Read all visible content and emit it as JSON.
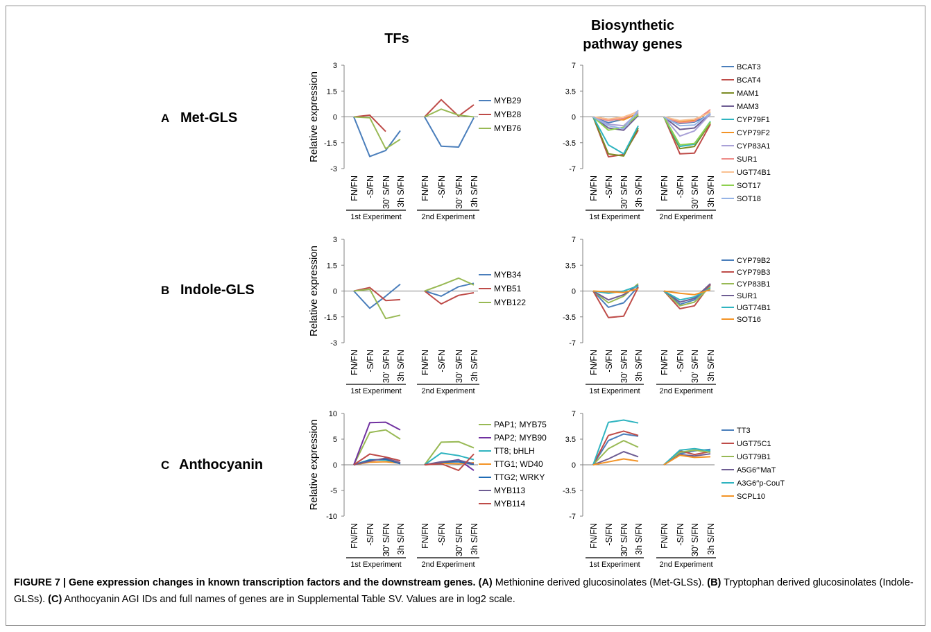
{
  "columns": {
    "tfs": "TFs",
    "biosynthetic": [
      "Biosynthetic",
      "pathway genes"
    ]
  },
  "ylabel": "Relative expression",
  "xlabels": [
    "FN/FN",
    "-S/FN",
    "30’ S/FN",
    "3h S/FN"
  ],
  "experiments": [
    "1st Experiment",
    "2nd Experiment"
  ],
  "rows": [
    {
      "letter": "A",
      "name": "Met-GLS"
    },
    {
      "letter": "B",
      "name": "Indole-GLS"
    },
    {
      "letter": "C",
      "name": "Anthocyanin"
    }
  ],
  "caption": {
    "figure_label": "FIGURE 7 | Gene expression changes in known transcription factors and the downstream genes.",
    "a_tag": "(A)",
    "a_text": "Methionine derived glucosinolates (Met-GLSs).",
    "b_tag": "(B)",
    "b_text": "Tryptophan derived glucosinolates (Indole-GLSs).",
    "c_tag": "(C)",
    "c_text": "Anthocyanin AGI IDs and full names of genes are in Supplemental Table SV. Values are in log2 scale."
  },
  "chart_data": [
    {
      "id": "A-TFs",
      "type": "line",
      "ylim": [
        -3,
        3
      ],
      "yticks": [
        "3",
        "1.5",
        "0",
        "-1.5",
        "-3"
      ],
      "categories": [
        "FN/FN",
        "-S/FN",
        "30’ S/FN",
        "3h S/FN"
      ],
      "series": [
        {
          "name": "MYB29",
          "color": "#4a7ebb",
          "exp1": [
            0,
            -2.3,
            -1.95,
            -0.8
          ],
          "exp2": [
            0,
            -1.7,
            -1.75,
            -0.05
          ]
        },
        {
          "name": "MYB28",
          "color": "#be4b48",
          "exp1": [
            0,
            0.1,
            -0.85,
            null
          ],
          "exp2": [
            0,
            1.0,
            0.05,
            0.7
          ]
        },
        {
          "name": "MYB76",
          "color": "#98b954",
          "exp1": [
            0,
            -0.05,
            -1.85,
            -1.3
          ],
          "exp2": [
            0,
            0.45,
            0.1,
            0.0
          ]
        }
      ]
    },
    {
      "id": "A-Bio",
      "type": "line",
      "ylim": [
        -7,
        7
      ],
      "yticks": [
        "7",
        "3.5",
        "0",
        "-3.5",
        "-7"
      ],
      "categories": [
        "FN/FN",
        "-S/FN",
        "30’ S/FN",
        "3h S/FN"
      ],
      "series": [
        {
          "name": "BCAT3",
          "color": "#4a7ebb",
          "exp1": [
            0,
            -0.8,
            -0.3,
            0.4
          ],
          "exp2": [
            0,
            -0.9,
            -0.7,
            0.3
          ]
        },
        {
          "name": "BCAT4",
          "color": "#be4b48",
          "exp1": [
            0,
            -5.4,
            -5.1,
            -1.8
          ],
          "exp2": [
            0,
            -5.0,
            -4.9,
            -1.0
          ]
        },
        {
          "name": "MAM1",
          "color": "#7b8b23",
          "exp1": [
            0,
            -5.0,
            -5.3,
            -1.5
          ],
          "exp2": [
            0,
            -4.3,
            -4.0,
            -0.8
          ]
        },
        {
          "name": "MAM3",
          "color": "#6e5d93",
          "exp1": [
            0,
            -1.5,
            -1.8,
            0.2
          ],
          "exp2": [
            0,
            -1.7,
            -1.5,
            0.4
          ]
        },
        {
          "name": "CYP79F1",
          "color": "#2fb4c0",
          "exp1": [
            0,
            -3.8,
            -5.0,
            -1.2
          ],
          "exp2": [
            0,
            -4.0,
            -3.7,
            -0.6
          ]
        },
        {
          "name": "CYP79F2",
          "color": "#f39325",
          "exp1": [
            0,
            -0.3,
            -0.4,
            0.5
          ],
          "exp2": [
            0,
            -0.6,
            -0.5,
            0.7
          ]
        },
        {
          "name": "CYP83A1",
          "color": "#a9a1d7",
          "exp1": [
            0,
            -1.0,
            -1.2,
            0.6
          ],
          "exp2": [
            0,
            -2.6,
            -1.9,
            0.4
          ]
        },
        {
          "name": "SUR1",
          "color": "#ee8b87",
          "exp1": [
            0,
            -0.5,
            -0.2,
            0.8
          ],
          "exp2": [
            0,
            -0.8,
            -0.6,
            1.0
          ]
        },
        {
          "name": "UGT74B1",
          "color": "#fac090",
          "exp1": [
            0,
            -0.3,
            0.0,
            0.7
          ],
          "exp2": [
            0,
            -0.5,
            -0.3,
            0.6
          ]
        },
        {
          "name": "SOT17",
          "color": "#8ed04f",
          "exp1": [
            0,
            -1.8,
            -1.4,
            0.3
          ],
          "exp2": [
            0,
            -3.8,
            -3.6,
            -0.7
          ]
        },
        {
          "name": "SOT18",
          "color": "#95b3e6",
          "exp1": [
            0,
            -1.2,
            -1.6,
            0.9
          ],
          "exp2": [
            0,
            -1.2,
            -1.1,
            0.5
          ]
        }
      ]
    },
    {
      "id": "B-TFs",
      "type": "line",
      "ylim": [
        -3,
        3
      ],
      "yticks": [
        "3",
        "1.5",
        "0",
        "-1.5",
        "-3"
      ],
      "categories": [
        "FN/FN",
        "-S/FN",
        "30’ S/FN",
        "3h S/FN"
      ],
      "series": [
        {
          "name": "MYB34",
          "color": "#4a7ebb",
          "exp1": [
            0,
            -1.0,
            -0.3,
            0.4
          ],
          "exp2": [
            0,
            -0.3,
            0.25,
            0.45
          ]
        },
        {
          "name": "MYB51",
          "color": "#be4b48",
          "exp1": [
            0,
            0.2,
            -0.55,
            -0.5
          ],
          "exp2": [
            0,
            -0.75,
            -0.25,
            -0.1
          ]
        },
        {
          "name": "MYB122",
          "color": "#98b954",
          "exp1": [
            0,
            0.1,
            -1.6,
            -1.4
          ],
          "exp2": [
            0,
            0.35,
            0.75,
            0.35
          ]
        }
      ]
    },
    {
      "id": "B-Bio",
      "type": "line",
      "ylim": [
        -7,
        7
      ],
      "yticks": [
        "7",
        "3.5",
        "0",
        "-3.5",
        "-7"
      ],
      "categories": [
        "FN/FN",
        "-S/FN",
        "30’ S/FN",
        "3h S/FN"
      ],
      "series": [
        {
          "name": "CYP79B2",
          "color": "#4a7ebb",
          "exp1": [
            0,
            -2.2,
            -1.6,
            0.6
          ],
          "exp2": [
            0,
            -1.8,
            -1.2,
            0.8
          ]
        },
        {
          "name": "CYP79B3",
          "color": "#be4b48",
          "exp1": [
            0,
            -3.6,
            -3.4,
            0.5
          ],
          "exp2": [
            0,
            -2.4,
            -2.0,
            0.9
          ]
        },
        {
          "name": "CYP83B1",
          "color": "#98b954",
          "exp1": [
            0,
            -1.6,
            -0.7,
            1.0
          ],
          "exp2": [
            0,
            -2.0,
            -1.5,
            0.6
          ]
        },
        {
          "name": "SUR1",
          "color": "#6e5d93",
          "exp1": [
            0,
            -1.2,
            -0.5,
            0.8
          ],
          "exp2": [
            0,
            -1.5,
            -1.0,
            1.0
          ]
        },
        {
          "name": "UGT74B1",
          "color": "#2fb4c0",
          "exp1": [
            0,
            -0.3,
            0.0,
            0.7
          ],
          "exp2": [
            0,
            -1.2,
            -0.8,
            0.4
          ]
        },
        {
          "name": "SOT16",
          "color": "#f39325",
          "exp1": [
            0,
            -0.1,
            -0.2,
            0.3
          ],
          "exp2": [
            0,
            -0.3,
            -0.5,
            0.2
          ]
        }
      ]
    },
    {
      "id": "C-TFs",
      "type": "line",
      "ylim": [
        -10,
        10
      ],
      "yticks": [
        "10",
        "5",
        "0",
        "-5",
        "-10"
      ],
      "categories": [
        "FN/FN",
        "-S/FN",
        "30’ S/FN",
        "3h S/FN"
      ],
      "series": [
        {
          "name": "PAP1; MYB75",
          "color": "#98b954",
          "exp1": [
            0,
            6.3,
            6.8,
            5.0
          ],
          "exp2": [
            0,
            4.4,
            4.5,
            3.3
          ]
        },
        {
          "name": "PAP2; MYB90",
          "color": "#7030a0",
          "exp1": [
            0,
            8.2,
            8.3,
            6.8
          ],
          "exp2": [
            0,
            0.4,
            1.0,
            -1.1
          ]
        },
        {
          "name": "TT8; bHLH",
          "color": "#2fb4c0",
          "exp1": [
            0,
            1.0,
            0.9,
            0.3
          ],
          "exp2": [
            0,
            2.3,
            1.8,
            1.0
          ]
        },
        {
          "name": "TTG1; WD40",
          "color": "#f39325",
          "exp1": [
            0,
            0.5,
            0.6,
            0.3
          ],
          "exp2": [
            0,
            0.3,
            0.2,
            0.4
          ]
        },
        {
          "name": "TTG2; WRKY",
          "color": "#1f6cb5",
          "exp1": [
            0,
            0.9,
            1.1,
            0.2
          ],
          "exp2": [
            0,
            0.5,
            0.6,
            0.1
          ]
        },
        {
          "name": "MYB113",
          "color": "#6e5d93",
          "exp1": [
            0,
            0.7,
            1.3,
            0.4
          ],
          "exp2": [
            0,
            0.6,
            0.9,
            0.2
          ]
        },
        {
          "name": "MYB114",
          "color": "#be4b48",
          "exp1": [
            0,
            2.1,
            1.5,
            0.8
          ],
          "exp2": [
            0,
            0.2,
            -1.1,
            2.1
          ]
        }
      ]
    },
    {
      "id": "C-Bio",
      "type": "line",
      "ylim": [
        -7,
        7
      ],
      "yticks": [
        "7",
        "3.5",
        "0",
        "-3.5",
        "-7"
      ],
      "categories": [
        "FN/FN",
        "-S/FN",
        "30’ S/FN",
        "3h S/FN"
      ],
      "series": [
        {
          "name": "TT3",
          "color": "#4a7ebb",
          "exp1": [
            0,
            3.3,
            4.2,
            3.9
          ],
          "exp2": [
            0,
            1.5,
            1.9,
            2.1
          ]
        },
        {
          "name": "UGT75C1",
          "color": "#be4b48",
          "exp1": [
            0,
            4.0,
            4.6,
            4.0
          ],
          "exp2": [
            0,
            1.9,
            1.4,
            1.8
          ]
        },
        {
          "name": "UGT79B1",
          "color": "#98b954",
          "exp1": [
            0,
            2.2,
            3.3,
            2.4
          ],
          "exp2": [
            0,
            1.7,
            2.0,
            1.7
          ]
        },
        {
          "name": "A5G6′′′MaT",
          "color": "#6e5d93",
          "exp1": [
            0,
            0.8,
            1.8,
            1.1
          ],
          "exp2": [
            0,
            1.4,
            1.2,
            1.5
          ]
        },
        {
          "name": "A3G6′′p-CouT",
          "color": "#2fb4c0",
          "exp1": [
            0,
            5.8,
            6.1,
            5.7
          ],
          "exp2": [
            0,
            2.0,
            2.2,
            1.9
          ]
        },
        {
          "name": "SCPL10",
          "color": "#f39325",
          "exp1": [
            0,
            0.4,
            0.8,
            0.5
          ],
          "exp2": [
            0,
            1.3,
            1.0,
            1.1
          ]
        }
      ]
    }
  ]
}
